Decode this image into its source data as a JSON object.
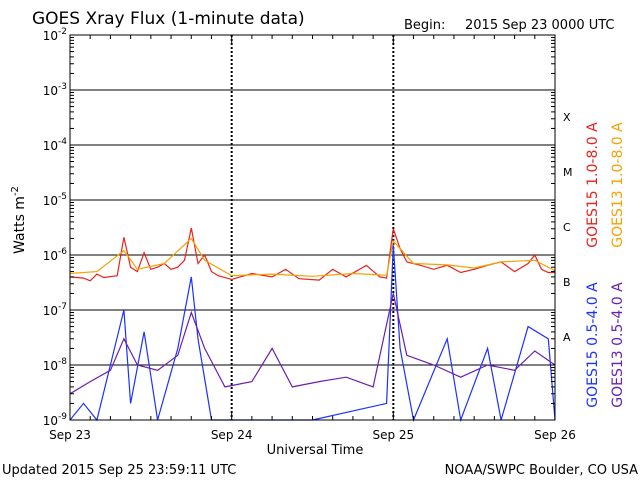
{
  "title": "GOES Xray Flux (1-minute data)",
  "begin_label": "Begin:",
  "begin_date": "2015 Sep 23 0000 UTC",
  "updated": "Updated 2015 Sep 25 23:59:11 UTC",
  "credit": "NOAA/SWPC Boulder, CO USA",
  "colors": {
    "goes15_long": "#e8221c",
    "goes13_long": "#f5a200",
    "goes15_short": "#1a32ff",
    "goes13_short": "#6a1fb0",
    "grid": "#000000",
    "axis": "#000000"
  },
  "chart_data": {
    "type": "line",
    "y_scale": "log",
    "ylabel": "Watts m",
    "ylabel_superscript": "-2",
    "xlabel": "Universal Time",
    "ylim": [
      1e-09,
      0.01
    ],
    "y_ticks": [
      {
        "value": 1e-09,
        "base": "10",
        "exp": "-9"
      },
      {
        "value": 1e-08,
        "base": "10",
        "exp": "-8"
      },
      {
        "value": 1e-07,
        "base": "10",
        "exp": "-7"
      },
      {
        "value": 1e-06,
        "base": "10",
        "exp": "-6"
      },
      {
        "value": 1e-05,
        "base": "10",
        "exp": "-5"
      },
      {
        "value": 0.0001,
        "base": "10",
        "exp": "-4"
      },
      {
        "value": 0.001,
        "base": "10",
        "exp": "-3"
      },
      {
        "value": 0.01,
        "base": "10",
        "exp": "-2"
      }
    ],
    "x_ticks": [
      "Sep 23",
      "Sep 24",
      "Sep 25",
      "Sep 26"
    ],
    "xlim": [
      "2015-09-23 00:00",
      "2015-09-26 00:00"
    ],
    "flare_classes": [
      {
        "label": "A",
        "value": 3.2e-08
      },
      {
        "label": "B",
        "value": 3.2e-07
      },
      {
        "label": "C",
        "value": 3.2e-06
      },
      {
        "label": "M",
        "value": 3.2e-05
      },
      {
        "label": "X",
        "value": 0.00032
      }
    ],
    "series": [
      {
        "name": "GOES15 1.0-8.0 A",
        "color": "#e8221c",
        "key": "goes15_long",
        "points": [
          [
            "2015-09-23 00:00",
            4e-07
          ],
          [
            "2015-09-23 02:00",
            3.8e-07
          ],
          [
            "2015-09-23 03:00",
            3.4e-07
          ],
          [
            "2015-09-23 04:00",
            4.5e-07
          ],
          [
            "2015-09-23 05:00",
            3.9e-07
          ],
          [
            "2015-09-23 07:00",
            4.2e-07
          ],
          [
            "2015-09-23 08:00",
            2.1e-06
          ],
          [
            "2015-09-23 09:00",
            6e-07
          ],
          [
            "2015-09-23 10:00",
            5e-07
          ],
          [
            "2015-09-23 11:00",
            1.1e-06
          ],
          [
            "2015-09-23 12:00",
            5.5e-07
          ],
          [
            "2015-09-23 13:00",
            6e-07
          ],
          [
            "2015-09-23 14:00",
            7e-07
          ],
          [
            "2015-09-23 15:00",
            5.5e-07
          ],
          [
            "2015-09-23 16:00",
            6e-07
          ],
          [
            "2015-09-23 17:00",
            8e-07
          ],
          [
            "2015-09-23 18:00",
            3.1e-06
          ],
          [
            "2015-09-23 19:00",
            7e-07
          ],
          [
            "2015-09-23 20:00",
            1e-06
          ],
          [
            "2015-09-23 21:00",
            5e-07
          ],
          [
            "2015-09-23 22:00",
            4.2e-07
          ],
          [
            "2015-09-24 00:00",
            3.6e-07
          ],
          [
            "2015-09-24 03:00",
            4.6e-07
          ],
          [
            "2015-09-24 06:00",
            4e-07
          ],
          [
            "2015-09-24 08:00",
            5.5e-07
          ],
          [
            "2015-09-24 10:00",
            3.7e-07
          ],
          [
            "2015-09-24 13:00",
            3.5e-07
          ],
          [
            "2015-09-24 15:00",
            5.5e-07
          ],
          [
            "2015-09-24 17:00",
            4e-07
          ],
          [
            "2015-09-24 20:00",
            6.5e-07
          ],
          [
            "2015-09-24 22:00",
            4e-07
          ],
          [
            "2015-09-24 23:00",
            3.8e-07
          ],
          [
            "2015-09-25 00:00",
            3e-06
          ],
          [
            "2015-09-25 01:00",
            1.3e-06
          ],
          [
            "2015-09-25 02:00",
            7.5e-07
          ],
          [
            "2015-09-25 04:00",
            6.5e-07
          ],
          [
            "2015-09-25 06:00",
            5.5e-07
          ],
          [
            "2015-09-25 08:00",
            6.5e-07
          ],
          [
            "2015-09-25 10:00",
            4.8e-07
          ],
          [
            "2015-09-25 12:00",
            5.5e-07
          ],
          [
            "2015-09-25 14:00",
            6.5e-07
          ],
          [
            "2015-09-25 16:00",
            7.5e-07
          ],
          [
            "2015-09-25 18:00",
            5e-07
          ],
          [
            "2015-09-25 20:00",
            7e-07
          ],
          [
            "2015-09-25 21:00",
            1e-06
          ],
          [
            "2015-09-25 22:00",
            5.5e-07
          ],
          [
            "2015-09-25 23:00",
            4.8e-07
          ],
          [
            "2015-09-26 00:00",
            4.8e-07
          ]
        ]
      },
      {
        "name": "GOES13 1.0-8.0 A",
        "color": "#f5a200",
        "key": "goes13_long",
        "points": [
          [
            "2015-09-23 00:00",
            4.6e-07
          ],
          [
            "2015-09-23 04:00",
            5e-07
          ],
          [
            "2015-09-23 08:00",
            1.2e-06
          ],
          [
            "2015-09-23 10:00",
            5.5e-07
          ],
          [
            "2015-09-23 14:00",
            7e-07
          ],
          [
            "2015-09-23 18:00",
            2e-06
          ],
          [
            "2015-09-23 20:00",
            8e-07
          ],
          [
            "2015-09-24 00:00",
            4.2e-07
          ],
          [
            "2015-09-24 06:00",
            4.5e-07
          ],
          [
            "2015-09-24 12:00",
            4.1e-07
          ],
          [
            "2015-09-24 18:00",
            4.6e-07
          ],
          [
            "2015-09-24 23:00",
            4.3e-07
          ],
          [
            "2015-09-25 00:00",
            1.8e-06
          ],
          [
            "2015-09-25 03:00",
            7e-07
          ],
          [
            "2015-09-25 08:00",
            6.6e-07
          ],
          [
            "2015-09-25 12:00",
            5.8e-07
          ],
          [
            "2015-09-25 16:00",
            7.5e-07
          ],
          [
            "2015-09-25 21:00",
            8e-07
          ],
          [
            "2015-09-26 00:00",
            5.2e-07
          ]
        ]
      },
      {
        "name": "GOES15 0.5-4.0 A",
        "color": "#1a32ff",
        "key": "goes15_short",
        "points": [
          [
            "2015-09-23 00:00",
            1e-09
          ],
          [
            "2015-09-23 02:00",
            2e-09
          ],
          [
            "2015-09-23 04:00",
            1e-09
          ],
          [
            "2015-09-23 06:00",
            1e-08
          ],
          [
            "2015-09-23 08:00",
            1e-07
          ],
          [
            "2015-09-23 09:00",
            2e-09
          ],
          [
            "2015-09-23 11:00",
            4e-08
          ],
          [
            "2015-09-23 13:00",
            1e-09
          ],
          [
            "2015-09-23 16:00",
            2e-08
          ],
          [
            "2015-09-23 18:00",
            4e-07
          ],
          [
            "2015-09-23 19:00",
            3e-08
          ],
          [
            "2015-09-23 21:00",
            1e-09
          ],
          [
            "2015-09-24 00:00",
            1e-09
          ],
          [
            "2015-09-24 12:00",
            1e-09
          ],
          [
            "2015-09-24 23:00",
            2e-09
          ],
          [
            "2015-09-25 00:00",
            1.5e-06
          ],
          [
            "2015-09-25 01:00",
            2e-08
          ],
          [
            "2015-09-25 03:00",
            1e-09
          ],
          [
            "2015-09-25 08:00",
            3e-08
          ],
          [
            "2015-09-25 10:00",
            1e-09
          ],
          [
            "2015-09-25 14:00",
            2e-08
          ],
          [
            "2015-09-25 16:00",
            1e-09
          ],
          [
            "2015-09-25 20:00",
            5e-08
          ],
          [
            "2015-09-25 23:00",
            3e-08
          ],
          [
            "2015-09-26 00:00",
            1e-09
          ]
        ]
      },
      {
        "name": "GOES13 0.5-4.0 A",
        "color": "#6a1fb0",
        "key": "goes13_short",
        "points": [
          [
            "2015-09-23 00:00",
            3e-09
          ],
          [
            "2015-09-23 03:00",
            5e-09
          ],
          [
            "2015-09-23 06:00",
            8e-09
          ],
          [
            "2015-09-23 08:00",
            3e-08
          ],
          [
            "2015-09-23 10:00",
            1e-08
          ],
          [
            "2015-09-23 13:00",
            8e-09
          ],
          [
            "2015-09-23 16:00",
            1.5e-08
          ],
          [
            "2015-09-23 18:00",
            9e-08
          ],
          [
            "2015-09-23 20:00",
            2e-08
          ],
          [
            "2015-09-23 23:00",
            4e-09
          ],
          [
            "2015-09-24 03:00",
            5e-09
          ],
          [
            "2015-09-24 06:00",
            2e-08
          ],
          [
            "2015-09-24 09:00",
            4e-09
          ],
          [
            "2015-09-24 13:00",
            5e-09
          ],
          [
            "2015-09-24 17:00",
            6e-09
          ],
          [
            "2015-09-24 21:00",
            4e-09
          ],
          [
            "2015-09-25 00:00",
            2e-07
          ],
          [
            "2015-09-25 02:00",
            1.5e-08
          ],
          [
            "2015-09-25 06:00",
            1e-08
          ],
          [
            "2015-09-25 10:00",
            6e-09
          ],
          [
            "2015-09-25 14:00",
            1e-08
          ],
          [
            "2015-09-25 18:00",
            8e-09
          ],
          [
            "2015-09-25 21:00",
            1.8e-08
          ],
          [
            "2015-09-26 00:00",
            1e-08
          ]
        ]
      }
    ]
  }
}
